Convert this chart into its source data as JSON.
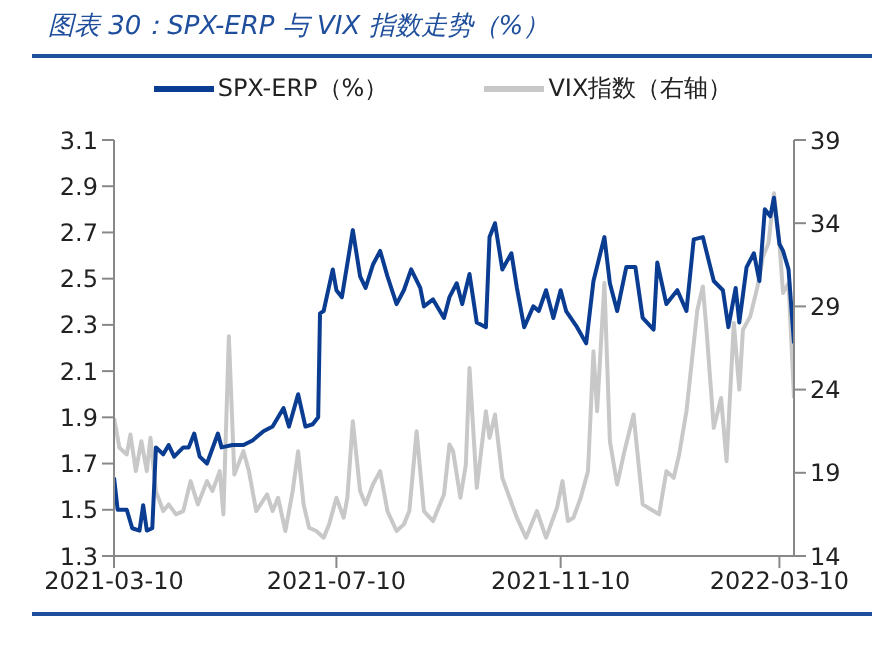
{
  "chart_data": {
    "type": "line",
    "title": "图表 30：SPX-ERP 与 VIX 指数走势（%）",
    "legend": "top",
    "marker": "none",
    "line_style": "solid",
    "grid": false,
    "xlim": [
      "2021-03-10",
      "2022-03-18"
    ],
    "xticks": [
      "2021-03-10",
      "2021-07-10",
      "2021-11-10",
      "2022-03-10"
    ],
    "ylim": [
      1.3,
      3.1
    ],
    "yticks": [
      1.3,
      1.5,
      1.7,
      1.9,
      2.1,
      2.3,
      2.5,
      2.7,
      2.9,
      3.1
    ],
    "y2lim": [
      14,
      39
    ],
    "y2ticks": [
      14,
      19,
      24,
      29,
      34,
      39
    ],
    "series": [
      {
        "name": "SPX-ERP（%）",
        "color": "#0a3d91",
        "x": [
          "2021-03-10",
          "2021-03-12",
          "2021-03-17",
          "2021-03-20",
          "2021-03-24",
          "2021-03-26",
          "2021-03-28",
          "2021-03-31",
          "2021-04-02",
          "2021-04-06",
          "2021-04-09",
          "2021-04-12",
          "2021-04-17",
          "2021-04-20",
          "2021-04-23",
          "2021-04-26",
          "2021-04-30",
          "2021-05-06",
          "2021-05-08",
          "2021-05-14",
          "2021-05-20",
          "2021-05-25",
          "2021-05-31",
          "2021-06-05",
          "2021-06-11",
          "2021-06-14",
          "2021-06-19",
          "2021-06-23",
          "2021-06-27",
          "2021-06-30",
          "2021-07-01",
          "2021-07-03",
          "2021-07-08",
          "2021-07-10",
          "2021-07-13",
          "2021-07-19",
          "2021-07-23",
          "2021-07-26",
          "2021-07-30",
          "2021-08-03",
          "2021-08-07",
          "2021-08-12",
          "2021-08-16",
          "2021-08-20",
          "2021-08-25",
          "2021-08-27",
          "2021-09-01",
          "2021-09-07",
          "2021-09-10",
          "2021-09-14",
          "2021-09-17",
          "2021-09-21",
          "2021-09-25",
          "2021-09-30",
          "2021-10-02",
          "2021-10-05",
          "2021-10-09",
          "2021-10-14",
          "2021-10-17",
          "2021-10-21",
          "2021-10-26",
          "2021-10-29",
          "2021-11-02",
          "2021-11-06",
          "2021-11-10",
          "2021-11-13",
          "2021-11-19",
          "2021-11-24",
          "2021-11-28",
          "2021-12-04",
          "2021-12-07",
          "2021-12-11",
          "2021-12-16",
          "2021-12-21",
          "2021-12-25",
          "2021-12-31",
          "2022-01-02",
          "2022-01-07",
          "2022-01-13",
          "2022-01-18",
          "2022-01-22",
          "2022-01-27",
          "2022-02-02",
          "2022-02-07",
          "2022-02-10",
          "2022-02-14",
          "2022-02-16",
          "2022-02-20",
          "2022-02-24",
          "2022-02-27",
          "2022-03-02",
          "2022-03-05",
          "2022-03-07",
          "2022-03-10",
          "2022-03-12",
          "2022-03-15",
          "2022-03-18"
        ],
        "values": [
          1.64,
          1.5,
          1.5,
          1.42,
          1.41,
          1.52,
          1.41,
          1.42,
          1.77,
          1.74,
          1.78,
          1.73,
          1.77,
          1.77,
          1.83,
          1.73,
          1.7,
          1.83,
          1.77,
          1.78,
          1.78,
          1.8,
          1.84,
          1.86,
          1.94,
          1.86,
          2.0,
          1.86,
          1.87,
          1.9,
          2.35,
          2.36,
          2.54,
          2.45,
          2.42,
          2.71,
          2.51,
          2.46,
          2.56,
          2.62,
          2.51,
          2.39,
          2.45,
          2.54,
          2.46,
          2.38,
          2.41,
          2.33,
          2.42,
          2.48,
          2.39,
          2.52,
          2.31,
          2.29,
          2.68,
          2.74,
          2.54,
          2.61,
          2.46,
          2.29,
          2.38,
          2.36,
          2.45,
          2.33,
          2.45,
          2.36,
          2.29,
          2.22,
          2.49,
          2.68,
          2.48,
          2.36,
          2.55,
          2.55,
          2.33,
          2.28,
          2.57,
          2.39,
          2.45,
          2.36,
          2.67,
          2.68,
          2.49,
          2.45,
          2.29,
          2.46,
          2.31,
          2.55,
          2.61,
          2.49,
          2.8,
          2.77,
          2.85,
          2.65,
          2.62,
          2.54,
          2.22
        ]
      },
      {
        "name": "VIX指数（右轴）",
        "color": "#c8c8c8",
        "axis": "y2",
        "x": [
          "2021-03-10",
          "2021-03-13",
          "2021-03-17",
          "2021-03-19",
          "2021-03-22",
          "2021-03-25",
          "2021-03-28",
          "2021-03-30",
          "2021-04-02",
          "2021-04-06",
          "2021-04-09",
          "2021-04-13",
          "2021-04-17",
          "2021-04-21",
          "2021-04-25",
          "2021-04-30",
          "2021-05-03",
          "2021-05-07",
          "2021-05-09",
          "2021-05-12",
          "2021-05-15",
          "2021-05-20",
          "2021-05-23",
          "2021-05-27",
          "2021-06-02",
          "2021-06-05",
          "2021-06-08",
          "2021-06-12",
          "2021-06-16",
          "2021-06-19",
          "2021-06-22",
          "2021-06-25",
          "2021-06-29",
          "2021-07-03",
          "2021-07-06",
          "2021-07-10",
          "2021-07-14",
          "2021-07-16",
          "2021-07-19",
          "2021-07-23",
          "2021-07-26",
          "2021-07-30",
          "2021-08-03",
          "2021-08-07",
          "2021-08-12",
          "2021-08-16",
          "2021-08-19",
          "2021-08-23",
          "2021-08-27",
          "2021-09-01",
          "2021-09-07",
          "2021-09-10",
          "2021-09-12",
          "2021-09-16",
          "2021-09-19",
          "2021-09-21",
          "2021-09-25",
          "2021-09-30",
          "2021-10-02",
          "2021-10-05",
          "2021-10-09",
          "2021-10-13",
          "2021-10-17",
          "2021-10-22",
          "2021-10-28",
          "2021-11-02",
          "2021-11-08",
          "2021-11-11",
          "2021-11-14",
          "2021-11-17",
          "2021-11-21",
          "2021-11-25",
          "2021-11-28",
          "2021-11-30",
          "2021-12-04",
          "2021-12-07",
          "2021-12-11",
          "2021-12-15",
          "2021-12-20",
          "2021-12-25",
          "2021-12-31",
          "2022-01-03",
          "2022-01-07",
          "2022-01-11",
          "2022-01-14",
          "2022-01-18",
          "2022-01-24",
          "2022-01-27",
          "2022-01-29",
          "2022-02-02",
          "2022-02-06",
          "2022-02-09",
          "2022-02-13",
          "2022-02-16",
          "2022-02-18",
          "2022-02-22",
          "2022-02-26",
          "2022-03-01",
          "2022-03-04",
          "2022-03-07",
          "2022-03-10",
          "2022-03-12",
          "2022-03-15",
          "2022-03-18"
        ],
        "values": [
          22.3,
          20.5,
          20.1,
          21.3,
          19.1,
          20.9,
          19.1,
          21.1,
          17.9,
          16.7,
          17.1,
          16.5,
          16.7,
          18.5,
          17.1,
          18.5,
          17.9,
          19.1,
          16.5,
          27.2,
          18.9,
          20.3,
          19.1,
          16.7,
          17.7,
          16.7,
          17.5,
          15.5,
          17.9,
          20.3,
          17.1,
          15.7,
          15.5,
          15.1,
          15.9,
          17.5,
          16.3,
          17.5,
          22.1,
          17.9,
          17.1,
          18.3,
          19.1,
          16.7,
          15.5,
          15.9,
          16.7,
          21.5,
          16.7,
          16.1,
          17.7,
          20.7,
          20.3,
          17.5,
          19.5,
          25.3,
          18.1,
          22.7,
          21.1,
          22.5,
          18.7,
          17.5,
          16.3,
          15.1,
          16.7,
          15.1,
          16.9,
          18.5,
          16.1,
          16.3,
          17.5,
          19.1,
          26.3,
          22.7,
          30.4,
          20.9,
          18.3,
          20.3,
          22.5,
          17.1,
          16.7,
          16.5,
          19.1,
          18.7,
          20.1,
          22.7,
          28.8,
          30.2,
          27.6,
          21.7,
          23.5,
          19.7,
          28.0,
          24.0,
          27.6,
          28.4,
          30.2,
          32.0,
          32.8,
          35.8,
          32.8,
          29.8,
          30.4,
          23.5
        ]
      }
    ]
  }
}
